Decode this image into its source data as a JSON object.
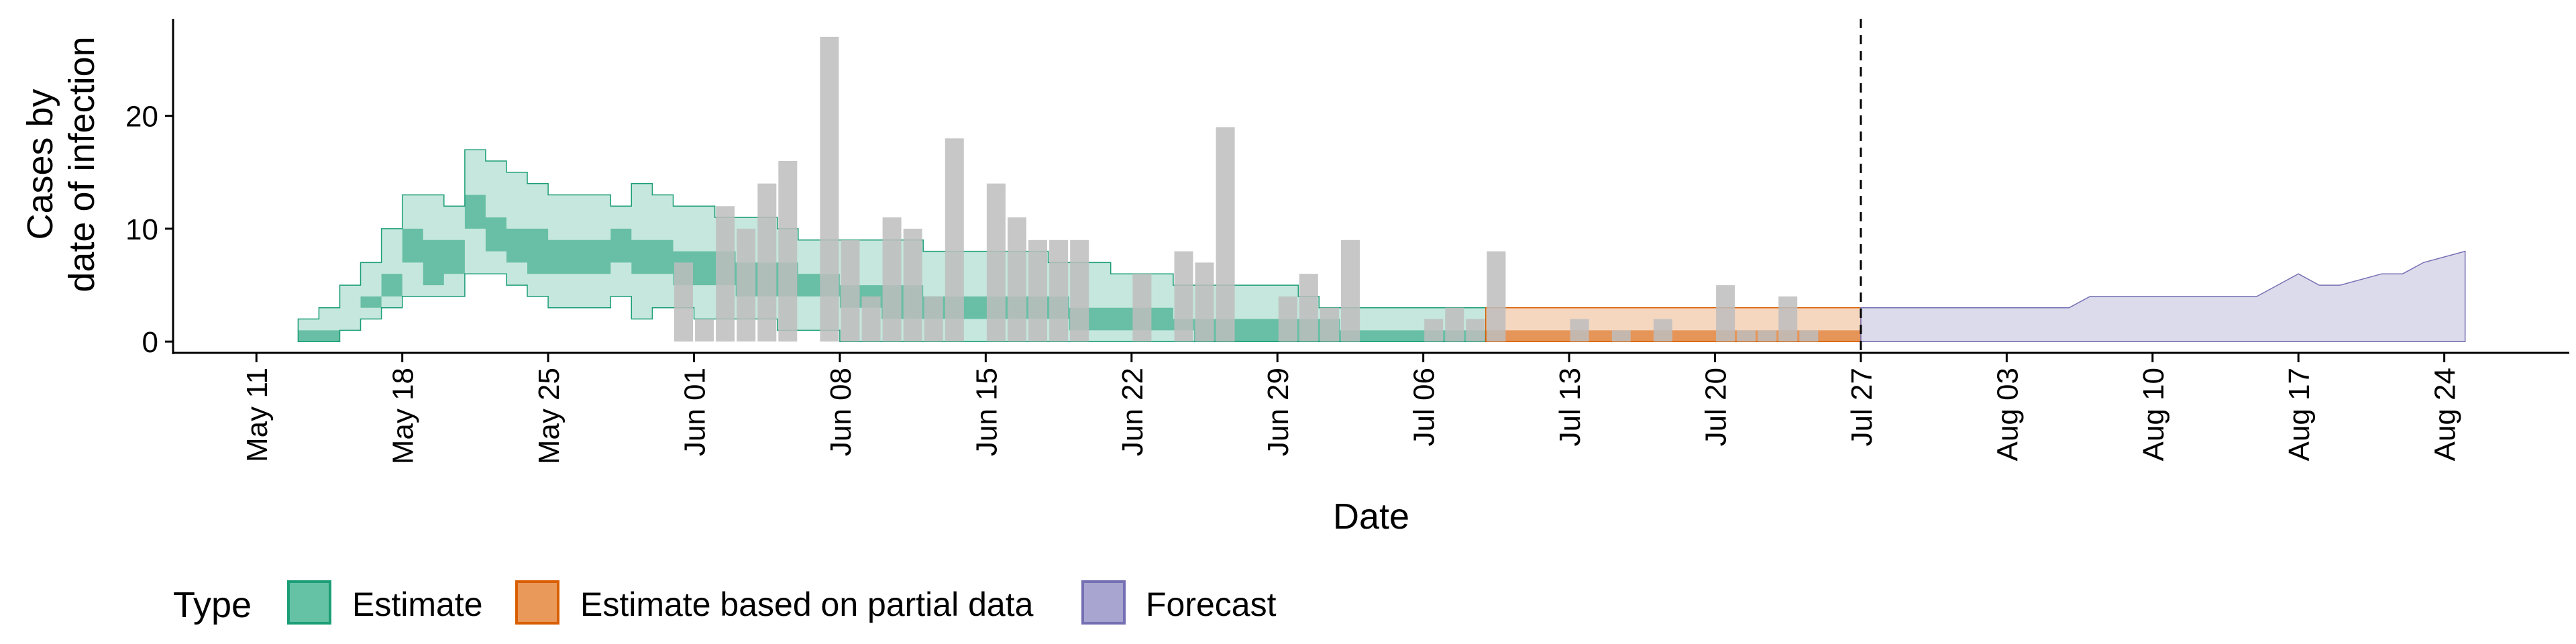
{
  "chart_data": {
    "type": "area",
    "xlabel": "Date",
    "ylabel": [
      "Cases by",
      "date of infection"
    ],
    "ylim": [
      -1,
      28.6
    ],
    "yticks": [
      0,
      10,
      20
    ],
    "xlim": [
      "2020-05-07",
      "2020-08-30"
    ],
    "xticks": [
      "May 11",
      "May 18",
      "May 25",
      "Jun 01",
      "Jun 08",
      "Jun 15",
      "Jun 22",
      "Jun 29",
      "Jul 06",
      "Jul 13",
      "Jul 20",
      "Jul 27",
      "Aug 03",
      "Aug 10",
      "Aug 17",
      "Aug 24"
    ],
    "xtick_dates": [
      "2020-05-11",
      "2020-05-18",
      "2020-05-25",
      "2020-06-01",
      "2020-06-08",
      "2020-06-15",
      "2020-06-22",
      "2020-06-29",
      "2020-07-06",
      "2020-07-13",
      "2020-07-20",
      "2020-07-27",
      "2020-08-03",
      "2020-08-10",
      "2020-08-17",
      "2020-08-24"
    ],
    "grid": false,
    "vline_date": "2020-07-26",
    "legend": {
      "title": "Type",
      "position": "bottom",
      "items": [
        {
          "label": "Estimate",
          "fill": "#66c2a5",
          "stroke": "#1b9e77"
        },
        {
          "label": "Estimate based on partial data",
          "fill": "#e99a5a",
          "stroke": "#d95f02"
        },
        {
          "label": "Forecast",
          "fill": "#a8a5d0",
          "stroke": "#7570b3"
        }
      ]
    },
    "colors": {
      "bars": "#bdbdbd",
      "estimate": "#1b9e77",
      "partial": "#d95f02",
      "forecast": "#7570b3"
    },
    "bars": {
      "dates": [
        "2020-05-31",
        "2020-06-01",
        "2020-06-02",
        "2020-06-03",
        "2020-06-04",
        "2020-06-05",
        "2020-06-07",
        "2020-06-08",
        "2020-06-09",
        "2020-06-10",
        "2020-06-11",
        "2020-06-12",
        "2020-06-13",
        "2020-06-15",
        "2020-06-16",
        "2020-06-17",
        "2020-06-18",
        "2020-06-19",
        "2020-06-22",
        "2020-06-24",
        "2020-06-25",
        "2020-06-26",
        "2020-06-29",
        "2020-06-30",
        "2020-07-01",
        "2020-07-02",
        "2020-07-06",
        "2020-07-07",
        "2020-07-08",
        "2020-07-09",
        "2020-07-13",
        "2020-07-15",
        "2020-07-17",
        "2020-07-20",
        "2020-07-21",
        "2020-07-22",
        "2020-07-23",
        "2020-07-24"
      ],
      "values": [
        7,
        2,
        12,
        10,
        14,
        16,
        27,
        9,
        4,
        11,
        10,
        4,
        18,
        14,
        11,
        9,
        9,
        9,
        6,
        8,
        7,
        19,
        4,
        6,
        3,
        9,
        2,
        3,
        2,
        8,
        2,
        1,
        2,
        5,
        1,
        1,
        4,
        1
      ]
    },
    "series": [
      {
        "name": "Estimate",
        "dates": [
          "2020-05-13",
          "2020-05-14",
          "2020-05-15",
          "2020-05-16",
          "2020-05-17",
          "2020-05-18",
          "2020-05-19",
          "2020-05-20",
          "2020-05-21",
          "2020-05-22",
          "2020-05-23",
          "2020-05-24",
          "2020-05-25",
          "2020-05-26",
          "2020-05-27",
          "2020-05-28",
          "2020-05-29",
          "2020-05-30",
          "2020-05-31",
          "2020-06-01",
          "2020-06-02",
          "2020-06-03",
          "2020-06-04",
          "2020-06-05",
          "2020-06-06",
          "2020-06-07",
          "2020-06-08",
          "2020-06-09",
          "2020-06-10",
          "2020-06-11",
          "2020-06-12",
          "2020-06-13",
          "2020-06-14",
          "2020-06-15",
          "2020-06-16",
          "2020-06-17",
          "2020-06-18",
          "2020-06-19",
          "2020-06-20",
          "2020-06-21",
          "2020-06-22",
          "2020-06-23",
          "2020-06-24",
          "2020-06-25",
          "2020-06-26",
          "2020-06-27",
          "2020-06-28",
          "2020-06-29",
          "2020-06-30",
          "2020-07-01",
          "2020-07-02",
          "2020-07-03",
          "2020-07-04",
          "2020-07-05",
          "2020-07-06",
          "2020-07-07",
          "2020-07-08"
        ],
        "lo90": [
          0,
          0,
          1,
          2,
          3,
          4,
          4,
          4,
          6,
          6,
          5,
          4,
          3,
          3,
          3,
          4,
          2,
          3,
          3,
          2,
          2,
          2,
          2,
          1,
          1,
          1,
          0,
          0,
          0,
          0,
          0,
          0,
          0,
          0,
          0,
          0,
          0,
          0,
          0,
          0,
          0,
          0,
          0,
          0,
          0,
          0,
          0,
          0,
          0,
          0,
          0,
          0,
          0,
          0,
          0,
          0,
          0
        ],
        "lo50": [
          0,
          0,
          2,
          3,
          4,
          7,
          5,
          6,
          10,
          8,
          7,
          6,
          6,
          6,
          6,
          7,
          6,
          6,
          5,
          5,
          5,
          4,
          4,
          4,
          4,
          4,
          3,
          3,
          2,
          2,
          2,
          2,
          2,
          2,
          2,
          2,
          2,
          1,
          1,
          1,
          1,
          1,
          1,
          0,
          0,
          0,
          0,
          0,
          0,
          0,
          0,
          0,
          0,
          0,
          0,
          0,
          0
        ],
        "hi50": [
          1,
          1,
          2,
          4,
          6,
          10,
          9,
          9,
          13,
          11,
          10,
          10,
          9,
          9,
          9,
          10,
          9,
          9,
          8,
          8,
          8,
          7,
          7,
          7,
          6,
          6,
          5,
          5,
          5,
          5,
          4,
          4,
          4,
          4,
          4,
          4,
          4,
          3,
          3,
          3,
          3,
          3,
          2,
          2,
          2,
          2,
          2,
          2,
          2,
          2,
          1,
          1,
          1,
          1,
          1,
          1,
          1
        ],
        "hi90": [
          2,
          3,
          5,
          7,
          10,
          13,
          13,
          12,
          17,
          16,
          15,
          14,
          13,
          13,
          13,
          12,
          14,
          13,
          12,
          12,
          11,
          11,
          11,
          10,
          9,
          9,
          9,
          9,
          9,
          9,
          8,
          8,
          8,
          8,
          8,
          8,
          7,
          7,
          7,
          6,
          6,
          6,
          5,
          5,
          5,
          5,
          5,
          5,
          4,
          3,
          3,
          3,
          3,
          3,
          3,
          3,
          3
        ]
      },
      {
        "name": "Estimate based on partial data",
        "dates": [
          "2020-07-09",
          "2020-07-10",
          "2020-07-11",
          "2020-07-12",
          "2020-07-13",
          "2020-07-14",
          "2020-07-15",
          "2020-07-16",
          "2020-07-17",
          "2020-07-18",
          "2020-07-19",
          "2020-07-20",
          "2020-07-21",
          "2020-07-22",
          "2020-07-23",
          "2020-07-24",
          "2020-07-25",
          "2020-07-26"
        ],
        "lo90": [
          0,
          0,
          0,
          0,
          0,
          0,
          0,
          0,
          0,
          0,
          0,
          0,
          0,
          0,
          0,
          0,
          0,
          0
        ],
        "lo50": [
          0,
          0,
          0,
          0,
          0,
          0,
          0,
          0,
          0,
          0,
          0,
          0,
          0,
          0,
          0,
          0,
          0,
          0
        ],
        "hi50": [
          1,
          1,
          1,
          1,
          1,
          1,
          1,
          1,
          1,
          1,
          1,
          1,
          1,
          1,
          1,
          1,
          1,
          1
        ],
        "hi90": [
          3,
          3,
          3,
          3,
          3,
          3,
          3,
          3,
          3,
          3,
          3,
          3,
          3,
          3,
          3,
          3,
          3,
          3
        ]
      },
      {
        "name": "Forecast",
        "dates": [
          "2020-07-27",
          "2020-08-06",
          "2020-08-07",
          "2020-08-15",
          "2020-08-16",
          "2020-08-17",
          "2020-08-18",
          "2020-08-19",
          "2020-08-21",
          "2020-08-22",
          "2020-08-23",
          "2020-08-25"
        ],
        "lo90": [
          0,
          0,
          0,
          0,
          0,
          0,
          0,
          0,
          0,
          0,
          0,
          0
        ],
        "hi90": [
          3,
          3,
          4,
          4,
          5,
          6,
          5,
          5,
          6,
          6,
          7,
          8
        ]
      }
    ]
  }
}
